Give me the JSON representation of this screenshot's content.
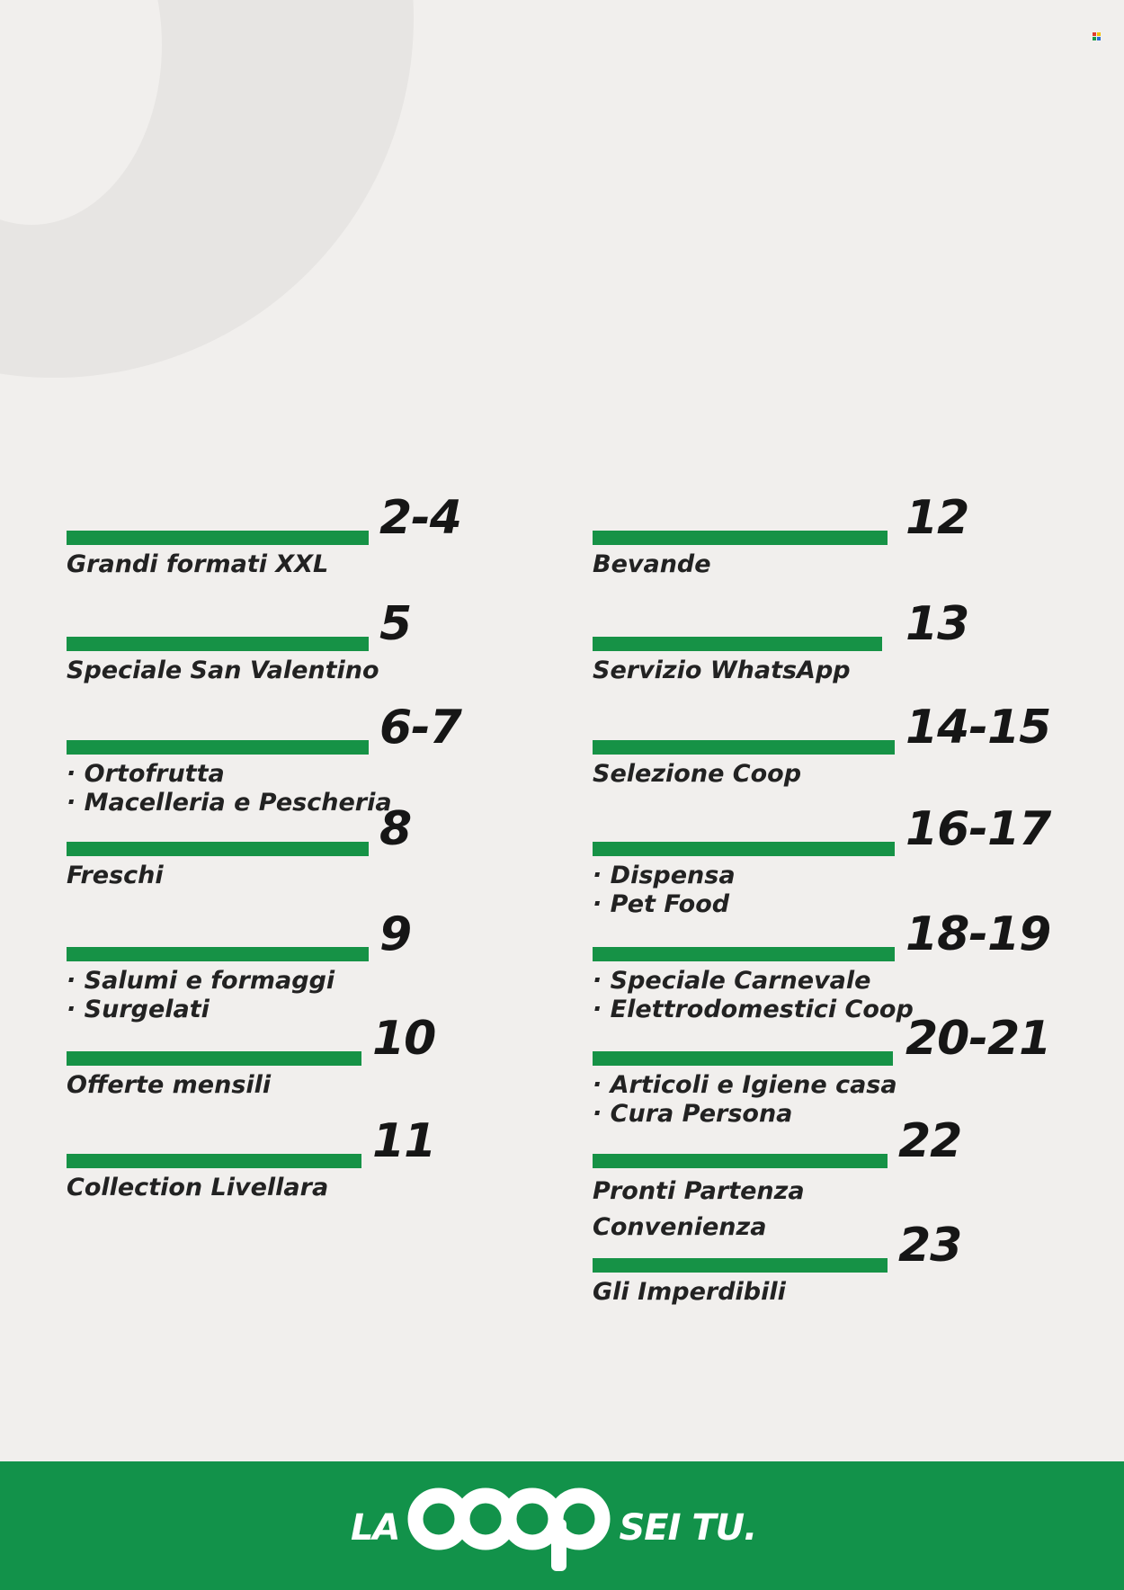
{
  "left_column": [
    {
      "pages": "2-4",
      "lines": [
        "Grandi formati XXL"
      ]
    },
    {
      "pages": "5",
      "lines": [
        "Speciale San Valentino"
      ]
    },
    {
      "pages": "6-7",
      "lines": [
        "· Ortofrutta",
        "· Macelleria e Pescheria"
      ]
    },
    {
      "pages": "8",
      "lines": [
        "Freschi"
      ]
    },
    {
      "pages": "9",
      "lines": [
        "· Salumi e formaggi",
        "· Surgelati"
      ]
    },
    {
      "pages": "10",
      "lines": [
        "Offerte mensili"
      ]
    },
    {
      "pages": "11",
      "lines": [
        "Collection Livellara"
      ]
    }
  ],
  "right_column": [
    {
      "pages": "12",
      "lines": [
        "Bevande"
      ]
    },
    {
      "pages": "13",
      "lines": [
        "Servizio WhatsApp"
      ]
    },
    {
      "pages": "14-15",
      "lines": [
        "Selezione Coop"
      ]
    },
    {
      "pages": "16-17",
      "lines": [
        "· Dispensa",
        "· Pet Food"
      ]
    },
    {
      "pages": "18-19",
      "lines": [
        "· Speciale Carnevale",
        "· Elettrodomestici Coop"
      ]
    },
    {
      "pages": "20-21",
      "lines": [
        "· Articoli e Igiene casa",
        "· Cura Persona"
      ]
    },
    {
      "pages": "22",
      "lines": [
        "Pronti Partenza",
        "Convenienza"
      ]
    },
    {
      "pages": "23",
      "lines": [
        "Gli Imperdibili"
      ]
    }
  ],
  "footer": {
    "logo_left": "LA",
    "logo_brand": "coop",
    "logo_right": "SEI TU."
  },
  "colors": {
    "accent_green": "#169246",
    "footer_green": "#12924a",
    "background": "#f1efed",
    "text": "#161616"
  }
}
